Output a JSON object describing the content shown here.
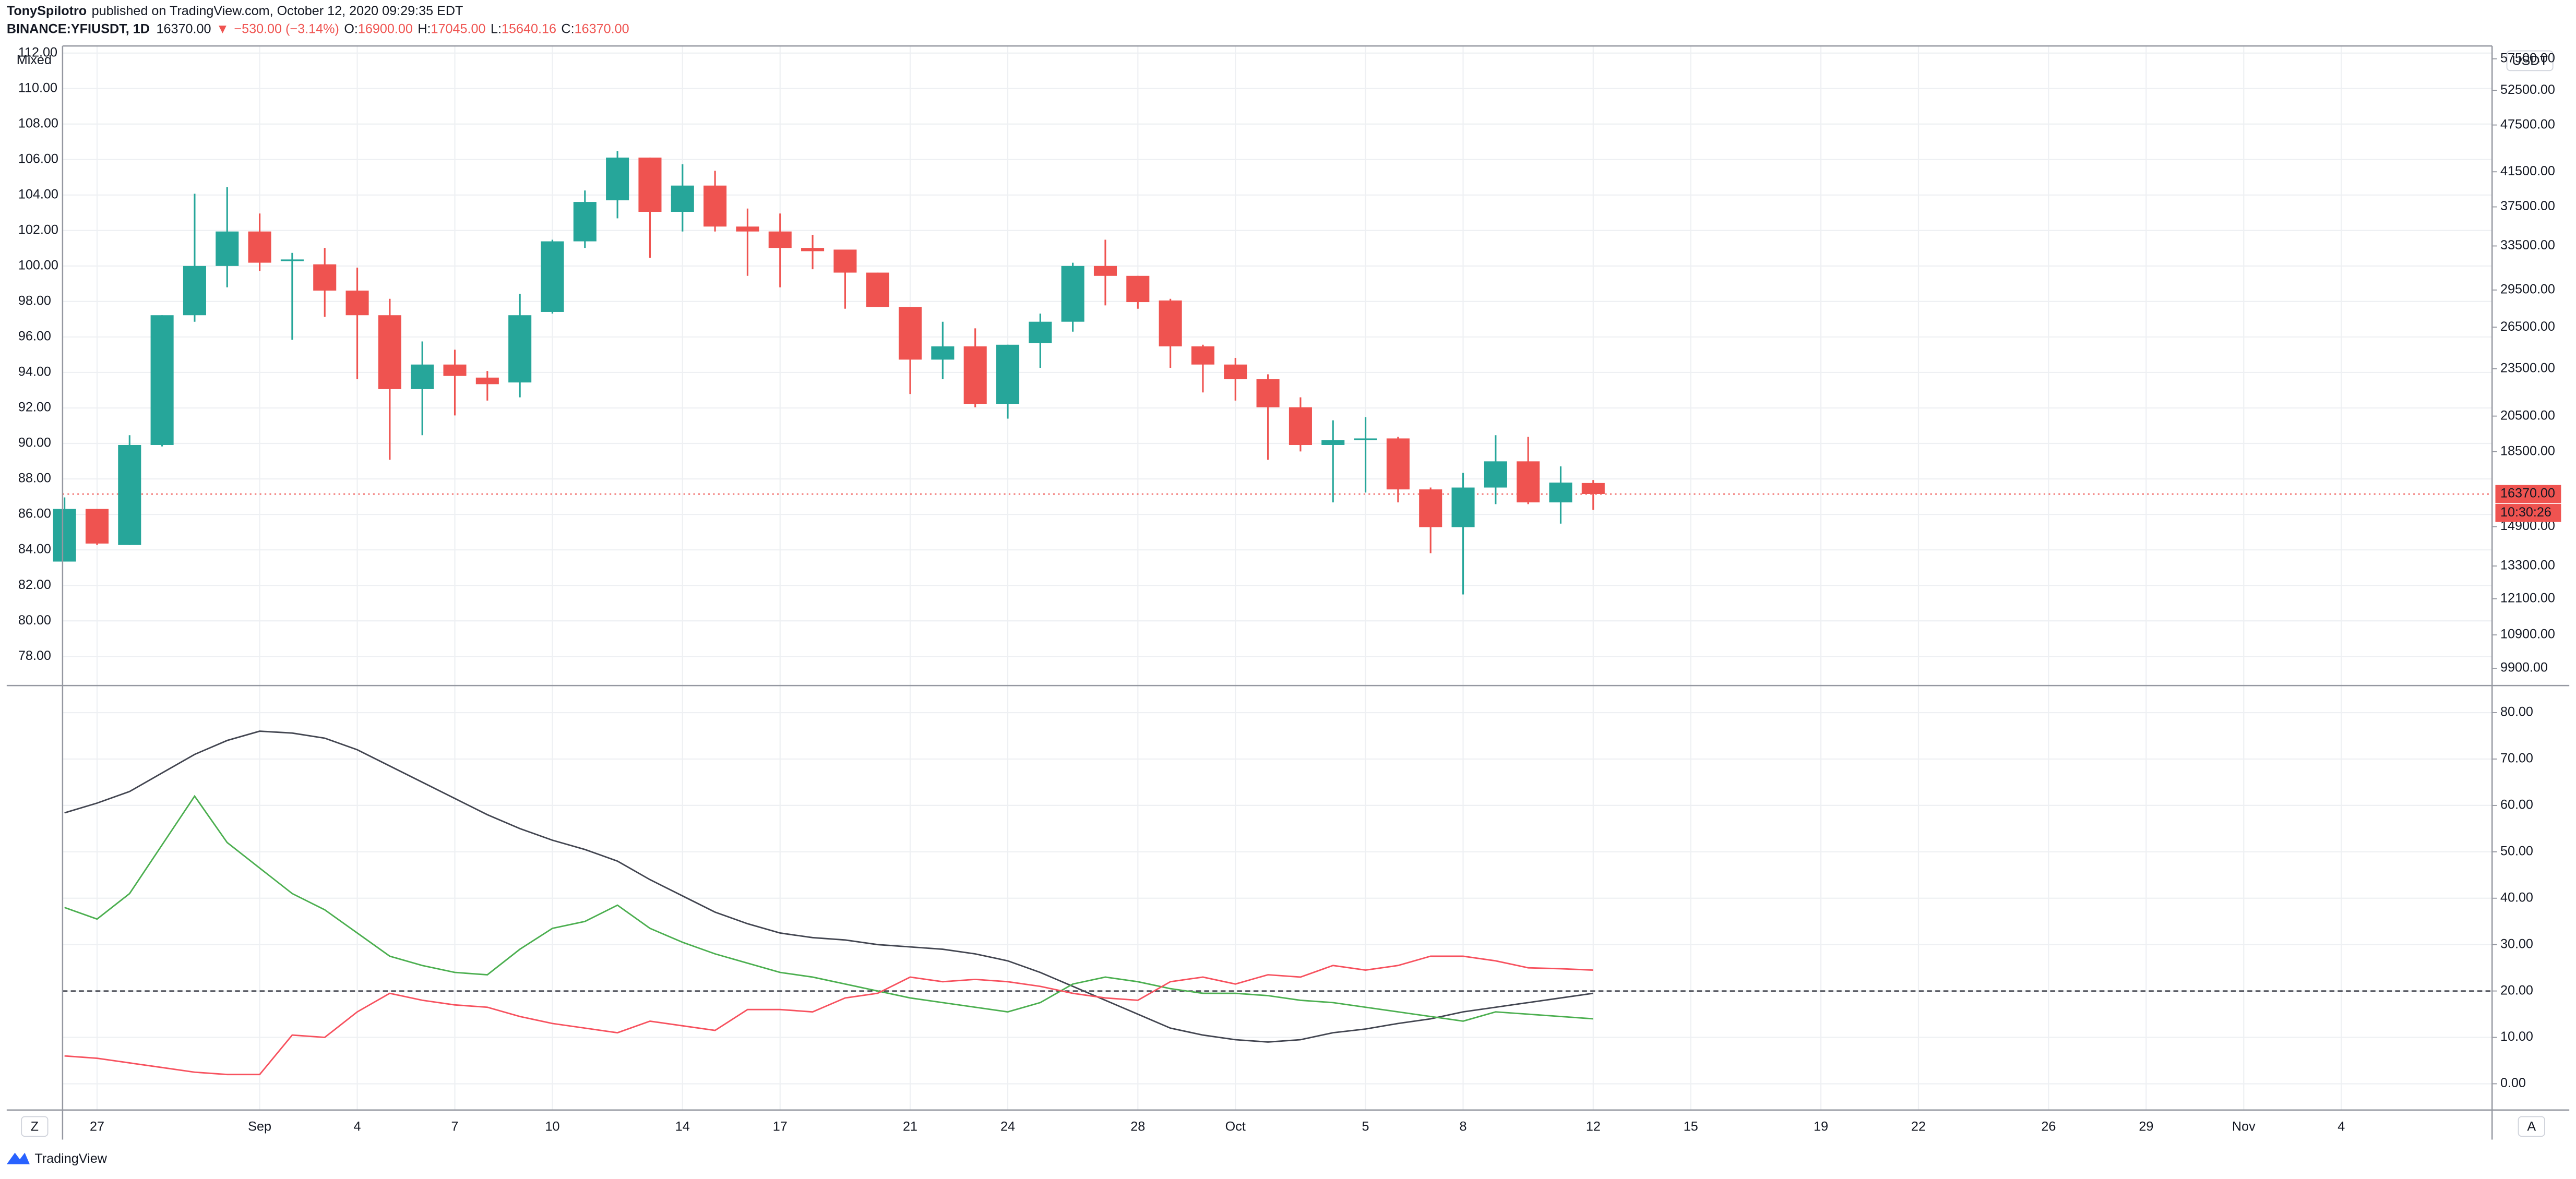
{
  "header": {
    "author": "TonySpilotro",
    "published": "published on TradingView.com, October 12, 2020 09:29:35 EDT",
    "symbol": "BINANCE:YFIUSDT, 1D",
    "last": "16370.00",
    "arrow": "▼",
    "change": "−530.00 (−3.14%)",
    "o_label": "O:",
    "o": "16900.00",
    "h_label": "H:",
    "h": "17045.00",
    "l_label": "L:",
    "l": "15640.16",
    "c_label": "C:",
    "c": "16370.00"
  },
  "ui": {
    "scale_mode": "Mixed",
    "currency": "USDT",
    "last_price_label": "16370.00",
    "countdown": "10:30:26",
    "left_button": "Z",
    "right_button": "A"
  },
  "footer": {
    "brand": "TradingView"
  },
  "chart_data": [
    {
      "type": "candlestick",
      "up_color": "#26a69a",
      "down_color": "#ef5350",
      "grid": true,
      "candle_axis": "y2",
      "y2_log": true,
      "categories": [
        null,
        "27",
        null,
        null,
        null,
        null,
        "Sep",
        null,
        null,
        "4",
        null,
        null,
        "7",
        null,
        null,
        "10",
        null,
        null,
        null,
        "14",
        null,
        null,
        "17",
        null,
        null,
        null,
        "21",
        null,
        null,
        "24",
        null,
        null,
        null,
        "28",
        null,
        null,
        "Oct",
        null,
        null,
        null,
        "5",
        null,
        null,
        "8",
        null,
        null,
        null,
        "12",
        null,
        null,
        "15",
        null,
        null,
        null,
        "19",
        null,
        null,
        "22",
        null,
        null,
        null,
        "26",
        null,
        null,
        "29",
        null,
        null,
        "Nov",
        null,
        null,
        "4"
      ],
      "open": [
        13470,
        15680,
        14130,
        18860,
        27430,
        31620,
        34930,
        32070,
        31770,
        29450,
        27430,
        22160,
        23790,
        22910,
        22590,
        27690,
        33950,
        38220,
        43230,
        36970,
        39880,
        35430,
        34930,
        33310,
        33150,
        31020,
        28090,
        24130,
        25070,
        21240,
        25310,
        26920,
        31620,
        30730,
        28620,
        25070,
        23790,
        22800,
        21030,
        18860,
        19130,
        19220,
        16590,
        14880,
        16680,
        17990,
        15980,
        16900,
        null,
        null,
        null,
        null,
        null,
        null,
        null,
        null,
        null,
        null,
        null,
        null,
        null,
        null,
        null,
        null,
        null,
        null,
        null,
        null,
        null,
        null,
        null
      ],
      "high": [
        16210,
        15680,
        19400,
        27430,
        38950,
        39700,
        36790,
        32840,
        33310,
        31470,
        28760,
        25430,
        24830,
        23350,
        29170,
        34110,
        39320,
        44050,
        43230,
        42410,
        41620,
        37320,
        36790,
        34600,
        33150,
        31020,
        28090,
        26920,
        26410,
        25190,
        27560,
        31920,
        34110,
        30730,
        28760,
        25190,
        24250,
        23130,
        21640,
        20250,
        20440,
        19310,
        16680,
        17400,
        19400,
        19310,
        17730,
        17045,
        null,
        null,
        null,
        null,
        null,
        null,
        null,
        null,
        null,
        null,
        null,
        null,
        null,
        null,
        null,
        null,
        null,
        null,
        null,
        null,
        null,
        null,
        null
      ],
      "low": [
        13470,
        14130,
        14130,
        18780,
        26920,
        29730,
        31170,
        25550,
        27300,
        22800,
        18070,
        19400,
        20540,
        21440,
        21640,
        27560,
        33310,
        36280,
        32380,
        34930,
        34930,
        30730,
        29730,
        31320,
        27950,
        28090,
        21850,
        22800,
        21030,
        20350,
        23570,
        26160,
        28220,
        27950,
        23570,
        21950,
        21440,
        18070,
        18510,
        15980,
        16440,
        15980,
        13800,
        12250,
        15900,
        15900,
        15030,
        15640.16,
        null,
        null,
        null,
        null,
        null,
        null,
        null,
        null,
        null,
        null,
        null,
        null,
        null,
        null,
        null,
        null,
        null,
        null,
        null,
        null,
        null,
        null,
        null
      ],
      "close": [
        15680,
        14190,
        18860,
        27430,
        31620,
        34930,
        31920,
        32220,
        29450,
        27430,
        22160,
        23790,
        23020,
        22480,
        27430,
        33950,
        38040,
        43230,
        36970,
        39880,
        35430,
        34930,
        33310,
        33000,
        31020,
        28090,
        24130,
        25070,
        21240,
        25190,
        26920,
        31620,
        30730,
        28490,
        25070,
        23790,
        22800,
        21030,
        18860,
        19130,
        19220,
        16590,
        14880,
        16680,
        17990,
        15980,
        16920,
        16370,
        null,
        null,
        null,
        null,
        null,
        null,
        null,
        null,
        null,
        null,
        null,
        null,
        null,
        null,
        null,
        null,
        null,
        null,
        null,
        null,
        null,
        null,
        null
      ],
      "ylim": [
        76.4,
        112.4
      ],
      "yticks": [
        {
          "value": 78,
          "label": "78.00"
        },
        {
          "value": 80,
          "label": "80.00"
        },
        {
          "value": 82,
          "label": "82.00"
        },
        {
          "value": 84,
          "label": "84.00"
        },
        {
          "value": 86,
          "label": "86.00"
        },
        {
          "value": 88,
          "label": "88.00"
        },
        {
          "value": 90,
          "label": "90.00"
        },
        {
          "value": 92,
          "label": "92.00"
        },
        {
          "value": 94,
          "label": "94.00"
        },
        {
          "value": 96,
          "label": "96.00"
        },
        {
          "value": 98,
          "label": "98.00"
        },
        {
          "value": 100,
          "label": "100.00"
        },
        {
          "value": 102,
          "label": "102.00"
        },
        {
          "value": 104,
          "label": "104.00"
        },
        {
          "value": 106,
          "label": "106.00"
        },
        {
          "value": 108,
          "label": "108.00"
        },
        {
          "value": 110,
          "label": "110.00"
        },
        {
          "value": 112,
          "label": "112.00"
        }
      ],
      "y2lim": [
        9440,
        59670
      ],
      "y2ticks": [
        {
          "value": 9900,
          "label": "9900.00"
        },
        {
          "value": 10900,
          "label": "10900.00"
        },
        {
          "value": 12100,
          "label": "12100.00"
        },
        {
          "value": 13300,
          "label": "13300.00"
        },
        {
          "value": 14900,
          "label": "14900.00"
        },
        {
          "value": 18500,
          "label": "18500.00"
        },
        {
          "value": 20500,
          "label": "20500.00"
        },
        {
          "value": 23500,
          "label": "23500.00"
        },
        {
          "value": 26500,
          "label": "26500.00"
        },
        {
          "value": 29500,
          "label": "29500.00"
        },
        {
          "value": 33500,
          "label": "33500.00"
        },
        {
          "value": 37500,
          "label": "37500.00"
        },
        {
          "value": 41500,
          "label": "41500.00"
        },
        {
          "value": 47500,
          "label": "47500.00"
        },
        {
          "value": 52500,
          "label": "52500.00"
        },
        {
          "value": 57500,
          "label": "57500.00"
        }
      ]
    },
    {
      "type": "line",
      "grid": true,
      "hline": 20,
      "ylim": [
        -5.66,
        85.66
      ],
      "yticks": [
        {
          "value": 0,
          "label": "0.00"
        },
        {
          "value": 10,
          "label": "10.00"
        },
        {
          "value": 20,
          "label": "20.00"
        },
        {
          "value": 30,
          "label": "30.00"
        },
        {
          "value": 40,
          "label": "40.00"
        },
        {
          "value": 50,
          "label": "50.00"
        },
        {
          "value": 60,
          "label": "60.00"
        },
        {
          "value": 70,
          "label": "70.00"
        },
        {
          "value": 80,
          "label": "80.00"
        }
      ],
      "series": [
        {
          "color": "#434651",
          "values": [
            58.4,
            60.5,
            63,
            67,
            71,
            74,
            76,
            75.6,
            74.5,
            72,
            68.5,
            65,
            61.5,
            58,
            55,
            52.5,
            50.5,
            48,
            44,
            40.5,
            37,
            34.5,
            32.5,
            31.5,
            31,
            30,
            29.5,
            29,
            28,
            26.5,
            24,
            21,
            18,
            15,
            12,
            10.5,
            9.5,
            9,
            9.5,
            11,
            11.8,
            13,
            14,
            15.5,
            16.5,
            17.5,
            18.5,
            19.5
          ]
        },
        {
          "color": "#4caf50",
          "values": [
            38,
            35.5,
            41,
            51.5,
            62,
            52,
            46.5,
            41,
            37.5,
            32.5,
            27.5,
            25.5,
            24,
            23.5,
            29,
            33.5,
            35,
            38.5,
            33.5,
            30.5,
            28,
            26,
            24,
            23,
            21.5,
            20,
            18.5,
            17.5,
            16.5,
            15.5,
            17.5,
            21.5,
            23,
            22,
            20.5,
            19.5,
            19.5,
            19,
            18,
            17.5,
            16.5,
            15.5,
            14.5,
            13.5,
            15.5,
            15,
            14.5,
            14
          ]
        },
        {
          "color": "#f7525f",
          "values": [
            6,
            5.5,
            4.5,
            3.5,
            2.5,
            2,
            2,
            10.5,
            10,
            15.5,
            19.5,
            18,
            17,
            16.5,
            14.5,
            13,
            12,
            11,
            13.5,
            12.5,
            11.5,
            16,
            16,
            15.5,
            18.5,
            19.5,
            23,
            22,
            22.5,
            22,
            21,
            19.5,
            18.5,
            18,
            22,
            23,
            21.5,
            23.5,
            23,
            25.5,
            24.5,
            25.5,
            27.5,
            27.5,
            26.5,
            25,
            24.8,
            24.5
          ]
        }
      ]
    }
  ]
}
